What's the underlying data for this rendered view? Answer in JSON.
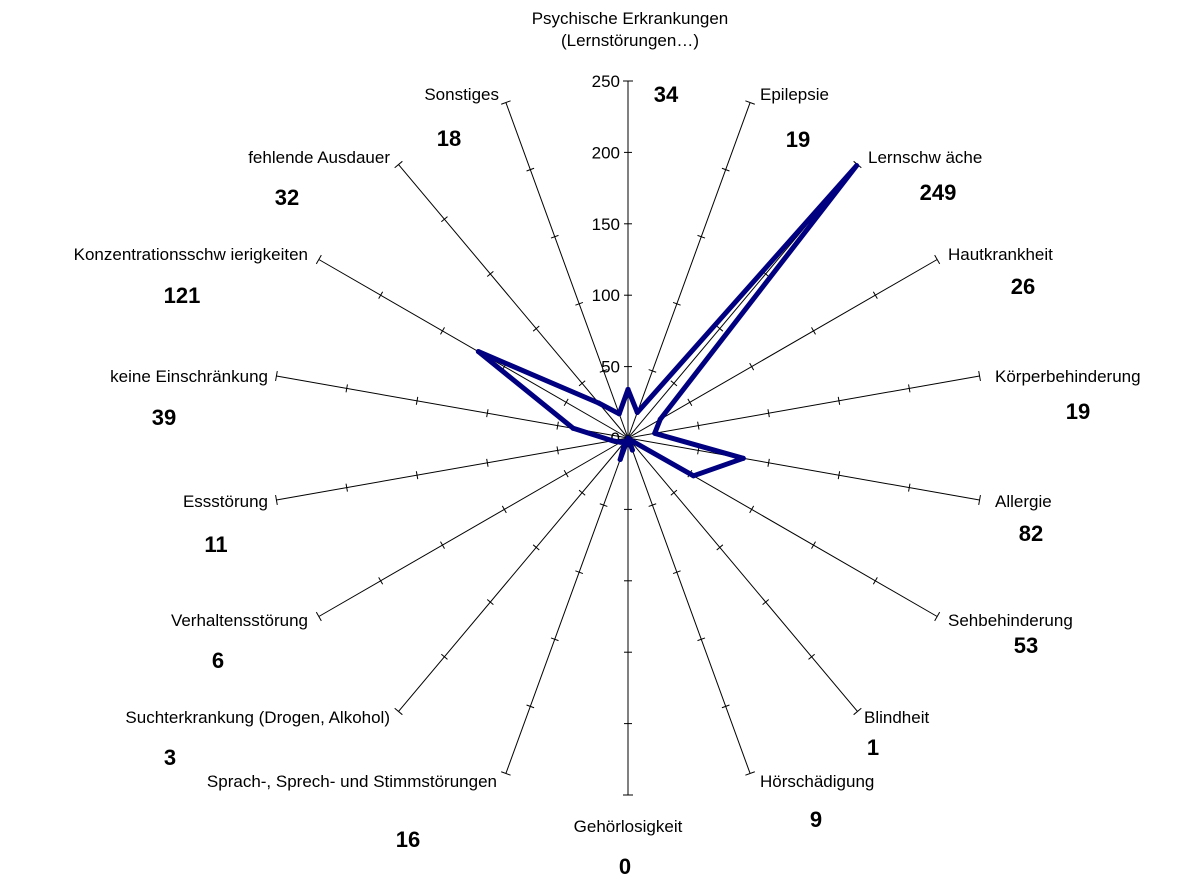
{
  "chart_data": {
    "type": "radar",
    "title": "",
    "categories": [
      "Psychische Erkrankungen\n(Lernstörungen…)",
      "Epilepsie",
      "Lernschw äche",
      "Hautkrankheit",
      "Körperbehinderung",
      "Allergie",
      "Sehbehinderung",
      "Blindheit",
      "Hörschädigung",
      "Gehörlosigkeit",
      "Sprach-, Sprech- und Stimmstörungen",
      "Suchterkrankung (Drogen, Alkohol)",
      "Verhaltensstörung",
      "Essstörung",
      "keine Einschränkung",
      "Konzentrationsschw ierigkeiten",
      "fehlende Ausdauer",
      "Sonstiges"
    ],
    "values": [
      34,
      19,
      249,
      26,
      19,
      82,
      53,
      1,
      9,
      0,
      16,
      3,
      6,
      11,
      39,
      121,
      32,
      18
    ],
    "value_labels": [
      "34",
      "19",
      "249",
      "26",
      "19",
      "82",
      "53",
      "1",
      "9",
      "0",
      "16",
      "3",
      "6",
      "11",
      "39",
      "121",
      "32",
      "18"
    ],
    "ticks": [
      "0",
      "50",
      "100",
      "150",
      "200",
      "250"
    ],
    "rlim": [
      0,
      250
    ],
    "series_color": "#000080",
    "grid": false,
    "legend": "none"
  }
}
